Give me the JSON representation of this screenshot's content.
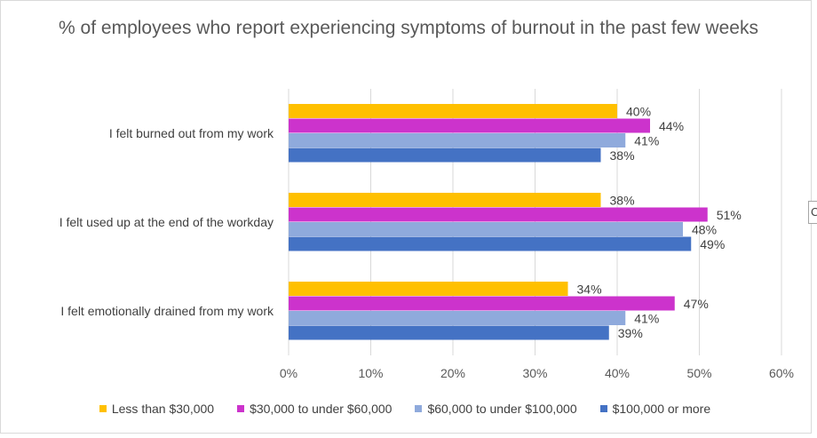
{
  "chart_data": {
    "type": "bar",
    "orientation": "horizontal",
    "title": "% of employees who report experiencing symptoms of burnout in the past few weeks",
    "categories": [
      "I felt burned out from my work",
      "I felt used up at the end of the workday",
      "I felt emotionally drained from my work"
    ],
    "series": [
      {
        "name": "Less than $30,000",
        "color": "#ffc000",
        "values": [
          40,
          38,
          34
        ]
      },
      {
        "name": "$30,000 to under $60,000",
        "color": "#cc33cc",
        "values": [
          44,
          51,
          47
        ]
      },
      {
        "name": "$60,000 to under $100,000",
        "color": "#8faadc",
        "values": [
          41,
          48,
          41
        ]
      },
      {
        "name": "$100,000 or more",
        "color": "#4472c4",
        "values": [
          38,
          49,
          39
        ]
      }
    ],
    "value_suffix": "%",
    "xlim": [
      0,
      60
    ],
    "x_ticks": [
      "0%",
      "10%",
      "20%",
      "30%",
      "40%",
      "50%",
      "60%"
    ],
    "grid": "vertical",
    "legend_position": "bottom"
  },
  "edge_fragment": "C"
}
